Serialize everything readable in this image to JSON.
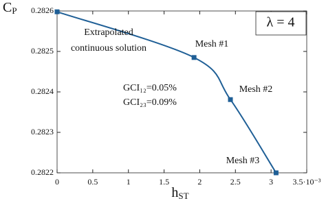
{
  "chart_data": {
    "type": "line",
    "y_label": {
      "text": "C",
      "subscript": "P"
    },
    "x_label": {
      "text": "h",
      "subscript": "ST"
    },
    "x": [
      0,
      1.92,
      2.43,
      3.07
    ],
    "series": [
      {
        "name": "λ = 4",
        "color": "#1f5f96",
        "values": [
          0.282598,
          0.282485,
          0.282381,
          0.2822
        ]
      }
    ],
    "xlim": [
      0,
      3.5
    ],
    "xticks": [
      0,
      0.5,
      1,
      1.5,
      2,
      2.5,
      3,
      {
        "value": 3.5,
        "label": "3.5·10⁻³"
      }
    ],
    "ylim": [
      0.2822,
      0.2826
    ],
    "yticks": [
      0.2822,
      0.2823,
      0.2824,
      0.2825,
      0.2826
    ],
    "grid": false,
    "legend": "upper right",
    "annotations": [
      "Extrapolated",
      "continuous solution",
      "Mesh #1",
      "Mesh #2",
      "Mesh #3",
      "GCI₁₂=0.05%",
      "GCI₂₃=0.09%"
    ]
  }
}
